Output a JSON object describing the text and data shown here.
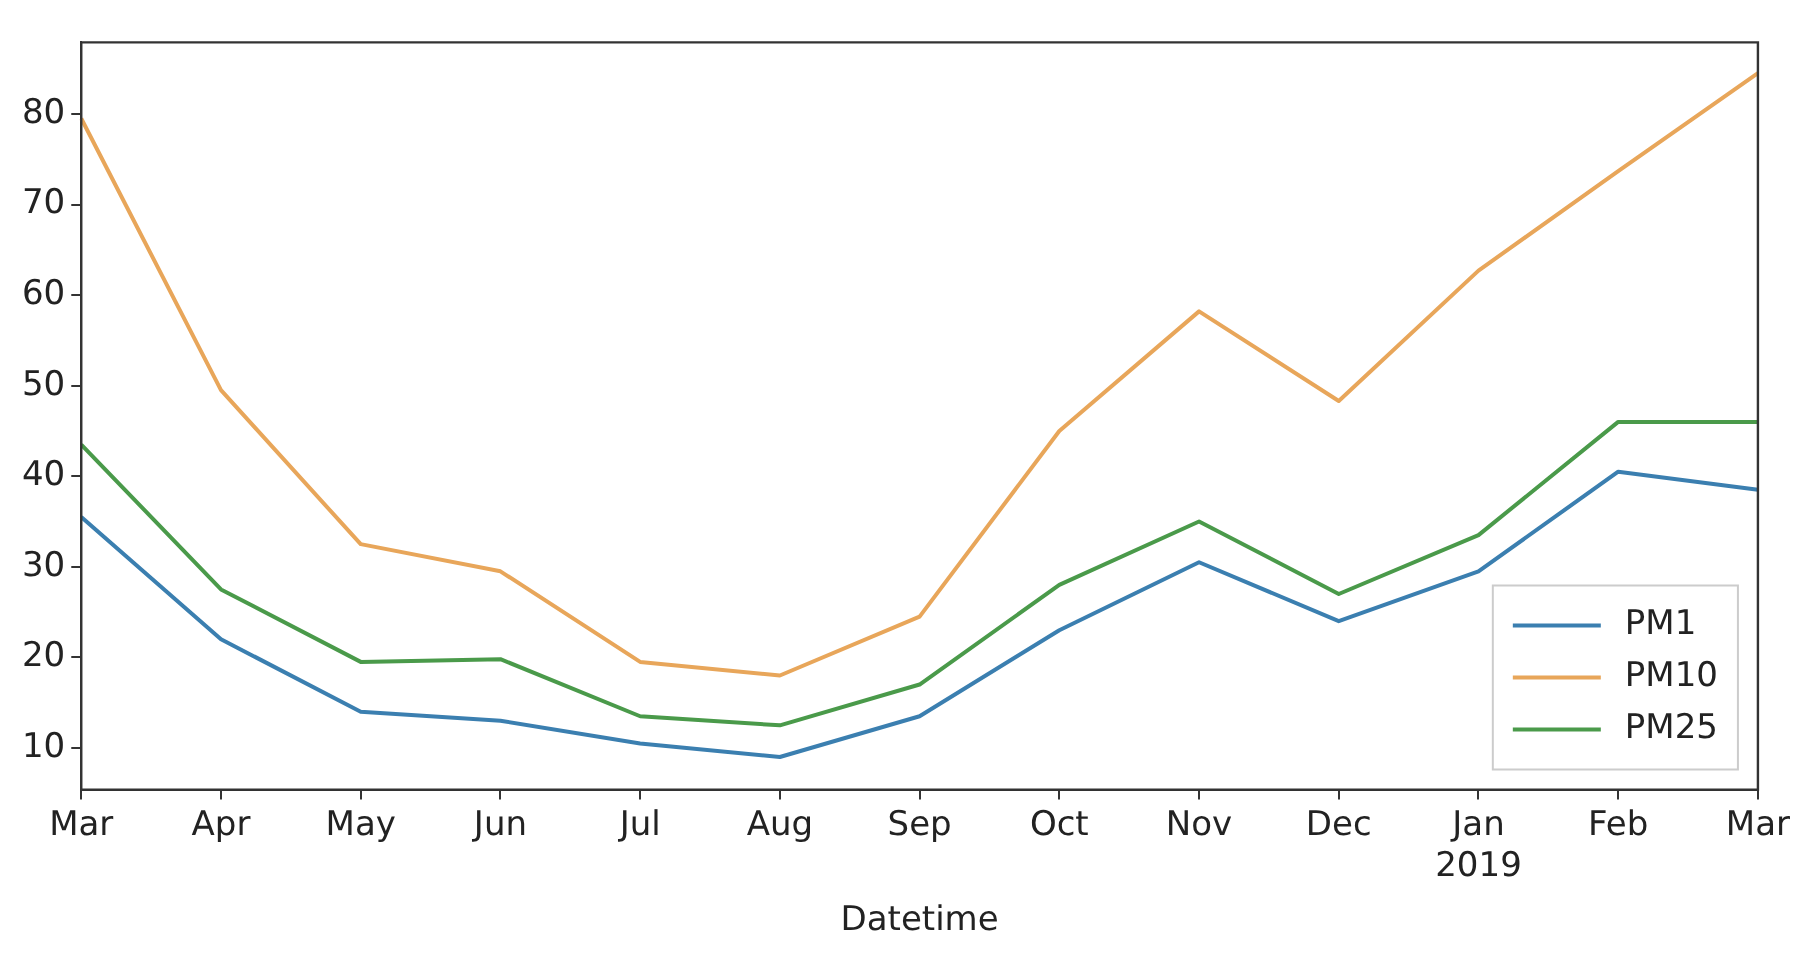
{
  "chart_data": {
    "type": "line",
    "xlabel": "Datetime",
    "categories": [
      "Mar",
      "Apr",
      "May",
      "Jun",
      "Jul",
      "Aug",
      "Sep",
      "Oct",
      "Nov",
      "Dec",
      "Jan\n2019",
      "Feb",
      "Mar"
    ],
    "series": [
      {
        "name": "PM1",
        "color": "#3b7fb0",
        "values": [
          35.5,
          22,
          14,
          13,
          10.5,
          9,
          13.5,
          23,
          30.5,
          24,
          29.5,
          40.5,
          38.5
        ]
      },
      {
        "name": "PM10",
        "color": "#e8a65a",
        "values": [
          79.5,
          49.5,
          32.5,
          29.5,
          19.5,
          18,
          24.5,
          45,
          58.2,
          48.3,
          62.7,
          73.7,
          84.5
        ]
      },
      {
        "name": "PM25",
        "color": "#4a9a4a",
        "values": [
          43.5,
          27.5,
          19.5,
          19.8,
          13.5,
          12.5,
          17,
          28,
          35,
          27,
          33.5,
          46,
          46
        ]
      }
    ],
    "ylim": [
      5.4,
      87.9
    ],
    "yticks": [
      10,
      20,
      30,
      40,
      50,
      60,
      70,
      80
    ],
    "grid": false,
    "legend": "bottom right",
    "marker": "none",
    "line_style": "solid"
  }
}
